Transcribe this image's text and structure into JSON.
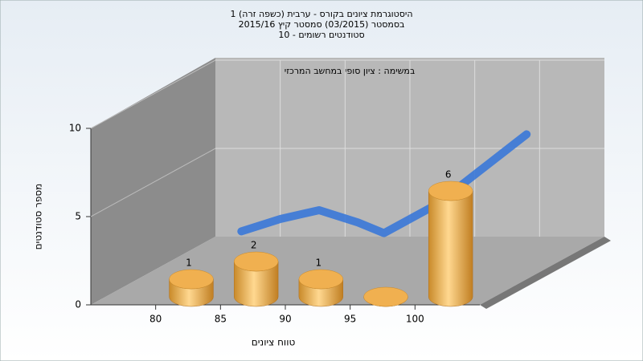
{
  "chart_data": {
    "type": "histogram",
    "title": [
      "היסטוגרמת ציונים בקורס - ערבית (כשפה זרה) 1",
      "בסמסטר  (03/2015)  סמסטר קיץ  2015/16",
      "סטודנטים רשומים - 10"
    ],
    "subtitle": "במשימה : ציון סופי במחשב המרכזי",
    "x_label": "טווח ציונים",
    "y_label": "מספר סטודנטים",
    "bins": [
      80,
      85,
      90,
      95,
      100,
      105
    ],
    "values": [
      1,
      2,
      1,
      0,
      6
    ],
    "color": "#f0b050",
    "xlim": [
      75,
      105
    ],
    "xticks": [
      80,
      85,
      90,
      95,
      100
    ],
    "ylim": [
      0,
      10
    ],
    "yticks": [
      0,
      5,
      10
    ],
    "grid": true,
    "curve": {
      "x": [
        77,
        80,
        83,
        86,
        88,
        92,
        99
      ],
      "values": [
        0.3,
        1.0,
        1.5,
        0.8,
        0.2,
        1.8,
        5.8
      ],
      "color": "#3a78d8"
    }
  }
}
